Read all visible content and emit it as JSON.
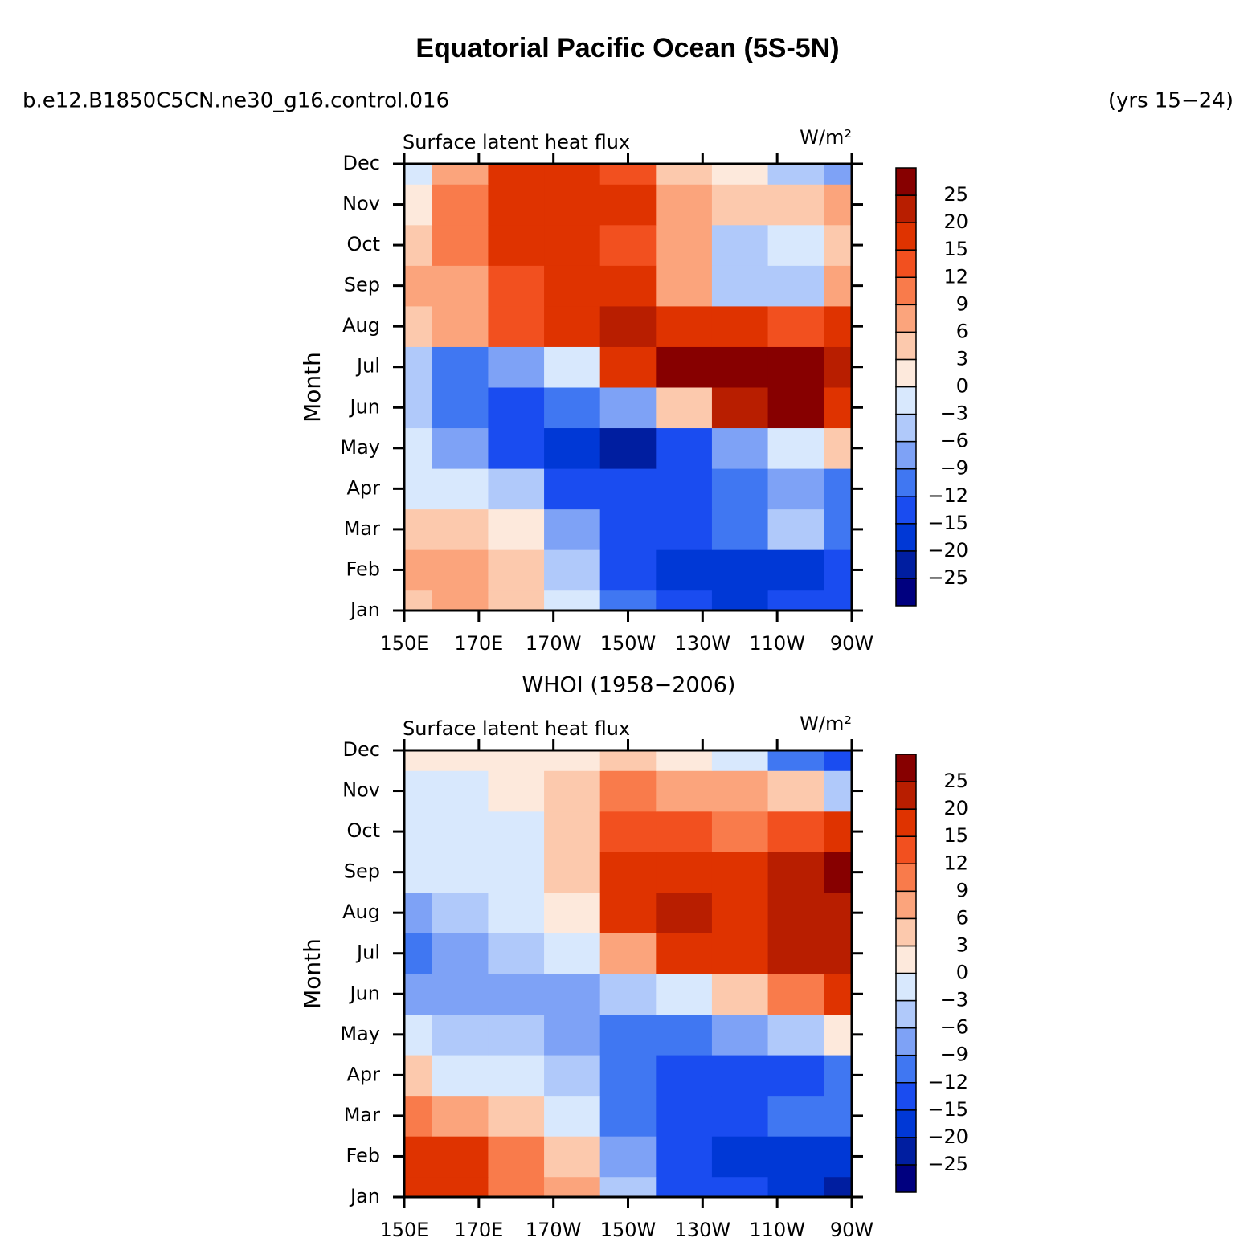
{
  "title": "Equatorial Pacific Ocean (5S-5N)",
  "case": "b.e12.B1850C5CN.ne30_g16.control.016",
  "years": "(yrs 15−24)",
  "chart_data": [
    {
      "type": "contour",
      "left_label": "Surface latent heat flux",
      "units": "W/m²",
      "ylabel": "Month",
      "x": [
        150,
        165,
        180,
        195,
        210,
        225,
        240,
        255,
        270
      ],
      "xlim": [
        150,
        270
      ],
      "xticks": [
        {
          "value": 150,
          "label": "150E"
        },
        {
          "value": 170,
          "label": "170E"
        },
        {
          "value": 190,
          "label": "170W"
        },
        {
          "value": 210,
          "label": "150W"
        },
        {
          "value": 230,
          "label": "130W"
        },
        {
          "value": 250,
          "label": "110W"
        },
        {
          "value": 270,
          "label": "90W"
        }
      ],
      "categories": [
        "Jan",
        "Feb",
        "Mar",
        "Apr",
        "May",
        "Jun",
        "Jul",
        "Aug",
        "Sep",
        "Oct",
        "Nov",
        "Dec"
      ],
      "z": [
        [
          3,
          6,
          3,
          -3,
          -12,
          -15,
          -20,
          -15,
          -15
        ],
        [
          6,
          6,
          3,
          -6,
          -15,
          -20,
          -20,
          -20,
          -15
        ],
        [
          3,
          3,
          0,
          -9,
          -15,
          -15,
          -12,
          -6,
          -12
        ],
        [
          -3,
          -3,
          -6,
          -15,
          -15,
          -15,
          -12,
          -9,
          -12
        ],
        [
          -3,
          -9,
          -15,
          -20,
          -25,
          -15,
          -9,
          -3,
          3
        ],
        [
          -6,
          -12,
          -15,
          -12,
          -9,
          3,
          20,
          25,
          15
        ],
        [
          -6,
          -12,
          -9,
          -3,
          15,
          25,
          25,
          25,
          20
        ],
        [
          3,
          6,
          12,
          15,
          20,
          15,
          15,
          12,
          15
        ],
        [
          6,
          6,
          12,
          15,
          15,
          6,
          -6,
          -6,
          6
        ],
        [
          3,
          9,
          15,
          15,
          12,
          6,
          -6,
          -3,
          3
        ],
        [
          0,
          9,
          15,
          15,
          15,
          6,
          3,
          3,
          6
        ],
        [
          -3,
          6,
          15,
          15,
          12,
          3,
          0,
          -6,
          -9
        ]
      ],
      "levels": [
        {
          "value": -25,
          "label": "−25"
        },
        {
          "value": -20,
          "label": "−20"
        },
        {
          "value": -15,
          "label": "−15"
        },
        {
          "value": -12,
          "label": "−12"
        },
        {
          "value": -9,
          "label": "−9"
        },
        {
          "value": -6,
          "label": "−6"
        },
        {
          "value": -3,
          "label": "−3"
        },
        0,
        3,
        6,
        9,
        12,
        15,
        20,
        25
      ],
      "colors": [
        "#00007f",
        "#001ea0",
        "#0038d6",
        "#1a4cf0",
        "#4077f2",
        "#7ea2f6",
        "#b0c9fa",
        "#d8e8fd",
        "#fde9dc",
        "#fcc9ad",
        "#fba47c",
        "#f97b4b",
        "#f2501f",
        "#df3300",
        "#b81e00",
        "#870000"
      ]
    },
    {
      "type": "contour",
      "title": "WHOI (1958−2006)",
      "left_label": "Surface latent heat flux",
      "units": "W/m²",
      "ylabel": "Month",
      "x": [
        150,
        165,
        180,
        195,
        210,
        225,
        240,
        255,
        270
      ],
      "xlim": [
        150,
        270
      ],
      "xticks": [
        {
          "value": 150,
          "label": "150E"
        },
        {
          "value": 170,
          "label": "170E"
        },
        {
          "value": 190,
          "label": "170W"
        },
        {
          "value": 210,
          "label": "150W"
        },
        {
          "value": 230,
          "label": "130W"
        },
        {
          "value": 250,
          "label": "110W"
        },
        {
          "value": 270,
          "label": "90W"
        }
      ],
      "categories": [
        "Jan",
        "Feb",
        "Mar",
        "Apr",
        "May",
        "Jun",
        "Jul",
        "Aug",
        "Sep",
        "Oct",
        "Nov",
        "Dec"
      ],
      "z": [
        [
          15,
          15,
          9,
          6,
          -6,
          -15,
          -15,
          -20,
          -25
        ],
        [
          15,
          15,
          9,
          3,
          -9,
          -15,
          -20,
          -20,
          -20
        ],
        [
          9,
          6,
          3,
          -3,
          -12,
          -15,
          -15,
          -12,
          -12
        ],
        [
          3,
          -3,
          -3,
          -6,
          -12,
          -15,
          -15,
          -15,
          -12
        ],
        [
          -3,
          -6,
          -6,
          -9,
          -12,
          -12,
          -9,
          -6,
          0
        ],
        [
          -9,
          -9,
          -9,
          -9,
          -6,
          -3,
          3,
          9,
          15
        ],
        [
          -12,
          -9,
          -6,
          -3,
          6,
          15,
          15,
          20,
          20
        ],
        [
          -9,
          -6,
          -3,
          0,
          15,
          20,
          15,
          20,
          20
        ],
        [
          -3,
          -3,
          -3,
          3,
          15,
          15,
          15,
          20,
          25
        ],
        [
          -3,
          -3,
          -3,
          3,
          12,
          12,
          9,
          12,
          15
        ],
        [
          -3,
          -3,
          0,
          3,
          9,
          6,
          6,
          3,
          -6
        ],
        [
          0,
          0,
          0,
          0,
          3,
          0,
          -3,
          -12,
          -15
        ]
      ],
      "levels": [
        {
          "value": -25,
          "label": "−25"
        },
        {
          "value": -20,
          "label": "−20"
        },
        {
          "value": -15,
          "label": "−15"
        },
        {
          "value": -12,
          "label": "−12"
        },
        {
          "value": -9,
          "label": "−9"
        },
        {
          "value": -6,
          "label": "−6"
        },
        {
          "value": -3,
          "label": "−3"
        },
        0,
        3,
        6,
        9,
        12,
        15,
        20,
        25
      ],
      "colors": [
        "#00007f",
        "#001ea0",
        "#0038d6",
        "#1a4cf0",
        "#4077f2",
        "#7ea2f6",
        "#b0c9fa",
        "#d8e8fd",
        "#fde9dc",
        "#fcc9ad",
        "#fba47c",
        "#f97b4b",
        "#f2501f",
        "#df3300",
        "#b81e00",
        "#870000"
      ]
    }
  ]
}
